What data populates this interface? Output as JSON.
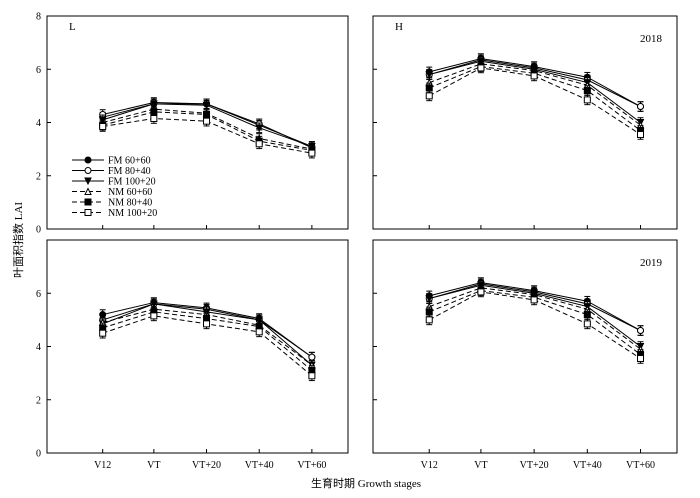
{
  "figure": {
    "ylabel": "叶面积指数 LAI",
    "xlabel": "生育时期 Growth stages"
  },
  "chart_data": [
    {
      "type": "line",
      "panel": "L",
      "year": "",
      "categories": [
        "V12",
        "VT",
        "VT+20",
        "VT+40",
        "VT+60"
      ],
      "ylim": [
        0,
        8
      ],
      "yticks": [
        0,
        2,
        4,
        6,
        8
      ],
      "series": [
        {
          "name": "FM 60+60",
          "values": [
            4.2,
            4.7,
            4.7,
            3.9,
            3.1
          ]
        },
        {
          "name": "FM 80+40",
          "values": [
            4.3,
            4.75,
            4.7,
            3.95,
            3.05
          ]
        },
        {
          "name": "FM 100+20",
          "values": [
            4.1,
            4.7,
            4.65,
            3.8,
            3.1
          ]
        },
        {
          "name": "NM 60+60",
          "values": [
            4.0,
            4.5,
            4.35,
            3.4,
            3.0
          ]
        },
        {
          "name": "NM 80+40",
          "values": [
            3.9,
            4.4,
            4.3,
            3.3,
            2.95
          ]
        },
        {
          "name": "NM 100+20",
          "values": [
            3.85,
            4.15,
            4.05,
            3.2,
            2.85
          ]
        }
      ]
    },
    {
      "type": "line",
      "panel": "H",
      "year": "2018",
      "categories": [
        "V12",
        "VT",
        "VT+20",
        "VT+40",
        "VT+60"
      ],
      "ylim": [
        0,
        8
      ],
      "yticks": [
        0,
        2,
        4,
        6,
        8
      ],
      "series": [
        {
          "name": "FM 60+60",
          "values": [
            5.9,
            6.4,
            6.1,
            5.7,
            4.6
          ]
        },
        {
          "name": "FM 80+40",
          "values": [
            5.8,
            6.35,
            6.05,
            5.6,
            4.6
          ]
        },
        {
          "name": "FM 100+20",
          "values": [
            5.8,
            6.3,
            6.0,
            5.5,
            4.0
          ]
        },
        {
          "name": "NM 60+60",
          "values": [
            5.5,
            6.2,
            5.95,
            5.4,
            3.9
          ]
        },
        {
          "name": "NM 80+40",
          "values": [
            5.3,
            6.1,
            5.85,
            5.2,
            3.7
          ]
        },
        {
          "name": "NM 100+20",
          "values": [
            5.0,
            6.05,
            5.75,
            4.85,
            3.55
          ]
        }
      ]
    },
    {
      "type": "line",
      "panel": "",
      "year": "",
      "categories": [
        "V12",
        "VT",
        "VT+20",
        "VT+40",
        "VT+60"
      ],
      "ylim": [
        0,
        8
      ],
      "yticks": [
        0,
        2,
        4,
        6
      ],
      "series": [
        {
          "name": "FM 60+60",
          "values": [
            5.2,
            5.65,
            5.45,
            5.05,
            3.6
          ]
        },
        {
          "name": "FM 80+40",
          "values": [
            5.0,
            5.6,
            5.4,
            5.0,
            3.6
          ]
        },
        {
          "name": "FM 100+20",
          "values": [
            4.85,
            5.6,
            5.3,
            5.0,
            3.3
          ]
        },
        {
          "name": "NM 60+60",
          "values": [
            4.9,
            5.4,
            5.2,
            4.8,
            3.3
          ]
        },
        {
          "name": "NM 80+40",
          "values": [
            4.7,
            5.3,
            5.05,
            4.75,
            3.1
          ]
        },
        {
          "name": "NM 100+20",
          "values": [
            4.5,
            5.15,
            4.85,
            4.55,
            2.9
          ]
        }
      ]
    },
    {
      "type": "line",
      "panel": "",
      "year": "2019",
      "categories": [
        "V12",
        "VT",
        "VT+20",
        "VT+40",
        "VT+60"
      ],
      "ylim": [
        0,
        8
      ],
      "yticks": [
        0,
        2,
        4,
        6
      ],
      "series": [
        {
          "name": "FM 60+60",
          "values": [
            5.9,
            6.4,
            6.1,
            5.7,
            4.6
          ]
        },
        {
          "name": "FM 80+40",
          "values": [
            5.8,
            6.35,
            6.05,
            5.6,
            4.6
          ]
        },
        {
          "name": "FM 100+20",
          "values": [
            5.8,
            6.3,
            6.0,
            5.5,
            4.0
          ]
        },
        {
          "name": "NM 60+60",
          "values": [
            5.5,
            6.2,
            5.95,
            5.4,
            3.9
          ]
        },
        {
          "name": "NM 80+40",
          "values": [
            5.3,
            6.1,
            5.85,
            5.2,
            3.7
          ]
        },
        {
          "name": "NM 100+20",
          "values": [
            5.0,
            6.05,
            5.75,
            4.85,
            3.55
          ]
        }
      ]
    }
  ],
  "legend": {
    "placement": "inside-left",
    "entries": [
      {
        "name": "FM 60+60",
        "marker": "filled-circle",
        "dash": "solid"
      },
      {
        "name": "FM 80+40",
        "marker": "open-circle",
        "dash": "solid"
      },
      {
        "name": "FM 100+20",
        "marker": "filled-triangle-down",
        "dash": "solid"
      },
      {
        "name": "NM 60+60",
        "marker": "open-triangle-up",
        "dash": "dashed"
      },
      {
        "name": "NM 80+40",
        "marker": "filled-square",
        "dash": "dashed"
      },
      {
        "name": "NM 100+20",
        "marker": "open-square",
        "dash": "dashed"
      }
    ]
  }
}
